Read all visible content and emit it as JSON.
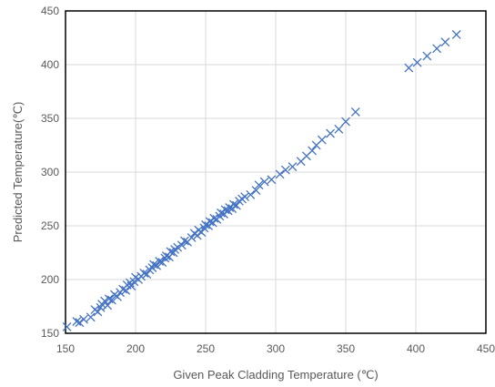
{
  "chart_data": {
    "type": "scatter",
    "title": "",
    "xlabel": "Given Peak Cladding Temperature (℃)",
    "ylabel": "Predicted Temperature(℃)",
    "xlim": [
      150,
      450
    ],
    "ylim": [
      150,
      450
    ],
    "x_ticks": [
      150,
      200,
      250,
      300,
      350,
      400,
      450
    ],
    "y_ticks": [
      150,
      200,
      250,
      300,
      350,
      400,
      450
    ],
    "grid": true,
    "legend": "none",
    "marker": "x",
    "marker_color": "#4472C4",
    "series": [
      {
        "points": [
          [
            151,
            156
          ],
          [
            158,
            161
          ],
          [
            160,
            160
          ],
          [
            163,
            163
          ],
          [
            168,
            165
          ],
          [
            171,
            172
          ],
          [
            173,
            170
          ],
          [
            175,
            174
          ],
          [
            176,
            177
          ],
          [
            178,
            180
          ],
          [
            180,
            176
          ],
          [
            181,
            182
          ],
          [
            183,
            181
          ],
          [
            185,
            186
          ],
          [
            187,
            184
          ],
          [
            189,
            188
          ],
          [
            191,
            191
          ],
          [
            193,
            190
          ],
          [
            194,
            195
          ],
          [
            196,
            197
          ],
          [
            197,
            194
          ],
          [
            199,
            198
          ],
          [
            200,
            202
          ],
          [
            202,
            200
          ],
          [
            204,
            203
          ],
          [
            206,
            206
          ],
          [
            208,
            205
          ],
          [
            210,
            209
          ],
          [
            212,
            211
          ],
          [
            213,
            214
          ],
          [
            215,
            213
          ],
          [
            217,
            217
          ],
          [
            219,
            216
          ],
          [
            221,
            220
          ],
          [
            222,
            222
          ],
          [
            224,
            221
          ],
          [
            225,
            226
          ],
          [
            227,
            225
          ],
          [
            228,
            228
          ],
          [
            230,
            230
          ],
          [
            233,
            232
          ],
          [
            235,
            236
          ],
          [
            237,
            235
          ],
          [
            240,
            239
          ],
          [
            242,
            243
          ],
          [
            244,
            241
          ],
          [
            245,
            246
          ],
          [
            247,
            244
          ],
          [
            249,
            248
          ],
          [
            250,
            251
          ],
          [
            252,
            250
          ],
          [
            253,
            254
          ],
          [
            255,
            253
          ],
          [
            256,
            257
          ],
          [
            258,
            256
          ],
          [
            260,
            259
          ],
          [
            261,
            262
          ],
          [
            263,
            261
          ],
          [
            264,
            265
          ],
          [
            266,
            264
          ],
          [
            267,
            267
          ],
          [
            269,
            266
          ],
          [
            270,
            270
          ],
          [
            272,
            269
          ],
          [
            274,
            273
          ],
          [
            276,
            275
          ],
          [
            278,
            277
          ],
          [
            282,
            279
          ],
          [
            286,
            283
          ],
          [
            288,
            288
          ],
          [
            292,
            291
          ],
          [
            297,
            293
          ],
          [
            303,
            298
          ],
          [
            307,
            302
          ],
          [
            312,
            305
          ],
          [
            318,
            310
          ],
          [
            322,
            315
          ],
          [
            326,
            320
          ],
          [
            329,
            325
          ],
          [
            333,
            330
          ],
          [
            339,
            336
          ],
          [
            345,
            340
          ],
          [
            350,
            347
          ],
          [
            357,
            356
          ],
          [
            395,
            397
          ],
          [
            401,
            402
          ],
          [
            408,
            408
          ],
          [
            415,
            415
          ],
          [
            421,
            421
          ],
          [
            429,
            428
          ]
        ]
      }
    ]
  }
}
